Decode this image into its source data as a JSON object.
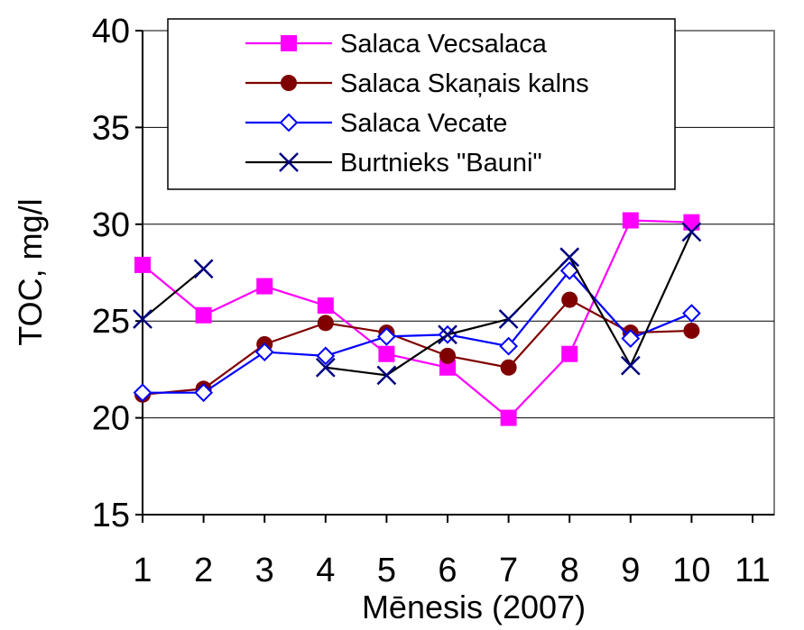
{
  "chart_data": {
    "type": "line",
    "xlabel": "Mēnesis (2007)",
    "ylabel": "TOC, mg/l",
    "xlim": [
      1,
      11
    ],
    "ylim": [
      15,
      40
    ],
    "x_ticks": [
      1,
      2,
      3,
      4,
      5,
      6,
      7,
      8,
      9,
      10,
      11
    ],
    "y_ticks": [
      15,
      20,
      25,
      30,
      35,
      40
    ],
    "grid": "horizontal",
    "legend_position": "top",
    "series": [
      {
        "name": "Salaca Vecsalaca",
        "color": "#ff00ff",
        "marker": "square",
        "points": [
          [
            1,
            27.9
          ],
          [
            2,
            25.3
          ],
          [
            3,
            26.8
          ],
          [
            4,
            25.8
          ],
          [
            5,
            23.3
          ],
          [
            6,
            22.6
          ],
          [
            7,
            20.0
          ],
          [
            8,
            23.3
          ],
          [
            9,
            30.2
          ],
          [
            10,
            30.1
          ]
        ]
      },
      {
        "name": "Salaca Skaņais kalns",
        "color": "#800000",
        "marker": "circle",
        "points": [
          [
            1,
            21.2
          ],
          [
            2,
            21.5
          ],
          [
            3,
            23.8
          ],
          [
            4,
            24.9
          ],
          [
            5,
            24.4
          ],
          [
            6,
            23.2
          ],
          [
            7,
            22.6
          ],
          [
            8,
            26.1
          ],
          [
            9,
            24.4
          ],
          [
            10,
            24.5
          ]
        ]
      },
      {
        "name": "Salaca Vecate",
        "color": "#0000ff",
        "marker": "diamond",
        "points": [
          [
            1,
            21.3
          ],
          [
            2,
            21.3
          ],
          [
            3,
            23.4
          ],
          [
            4,
            23.2
          ],
          [
            5,
            24.2
          ],
          [
            6,
            24.3
          ],
          [
            7,
            23.7
          ],
          [
            8,
            27.6
          ],
          [
            9,
            24.1
          ],
          [
            10,
            25.4
          ]
        ]
      },
      {
        "name": "Burtnieks \"Bauni\"",
        "color": "#000080",
        "line_color": "#000000",
        "marker": "x",
        "segments": [
          [
            [
              1,
              25.1
            ],
            [
              2,
              27.7
            ]
          ],
          [
            [
              4,
              22.6
            ],
            [
              5,
              22.2
            ],
            [
              6,
              24.3
            ],
            [
              7,
              25.1
            ],
            [
              8,
              28.3
            ],
            [
              9,
              22.7
            ],
            [
              10,
              29.6
            ]
          ]
        ]
      }
    ]
  }
}
